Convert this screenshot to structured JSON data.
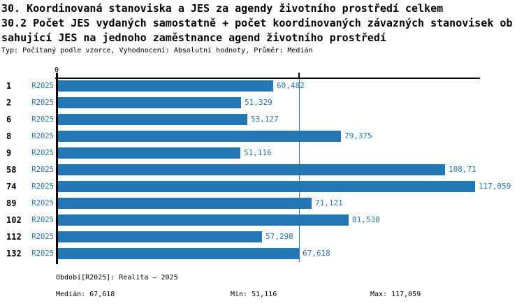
{
  "header": {
    "title_line1": "30. Koordinovaná stanoviska a JES za agendy životního prostředí celkem",
    "title_line2": "30.2 Počet JES vydaných samostatně + počet koordinovaných závazných stanovisek ob",
    "title_line3": "sahující JES na jednoho zaměstnance agend životního prostředí",
    "meta": "Typ: Počítaný podle vzorce, Vyhodnocení: Absolutní hodnoty, Průměr: Medián"
  },
  "chart_data": {
    "type": "bar",
    "orientation": "horizontal",
    "title": "30.2 Počet JES vydaných samostatně + počet koordinovaných závazných stanovisek obsahující JES na jednoho zaměstnance agend životního prostředí",
    "categories": [
      "1",
      "2",
      "6",
      "8",
      "9",
      "58",
      "74",
      "89",
      "102",
      "112",
      "132"
    ],
    "series": [
      {
        "name": "R2025",
        "values": [
          60.482,
          51.329,
          53.127,
          79.375,
          51.116,
          108.71,
          117.059,
          71.121,
          81.538,
          57.298,
          67.618
        ],
        "value_labels": [
          "60,482",
          "51,329",
          "53,127",
          "79,375",
          "51,116",
          "108,71",
          "117,059",
          "71,121",
          "81,538",
          "57,298",
          "67,618"
        ]
      }
    ],
    "axis": {
      "origin_label": "0",
      "xlim": [
        0,
        118.5
      ],
      "grid": false,
      "legend": "none"
    },
    "median_line_value": 67.618,
    "stats": {
      "median": 67.618,
      "min": 51.116,
      "max": 117.059
    }
  },
  "footer": {
    "period": "Období[R2025]: Realita – 2025",
    "median": "Medián: 67,618",
    "min": "Min: 51,116",
    "max": "Max: 117,059"
  },
  "colors": {
    "accent": "#2377b4",
    "bar": "#2377b4",
    "median_line": "#2e7fb8",
    "axis": "#000000"
  }
}
